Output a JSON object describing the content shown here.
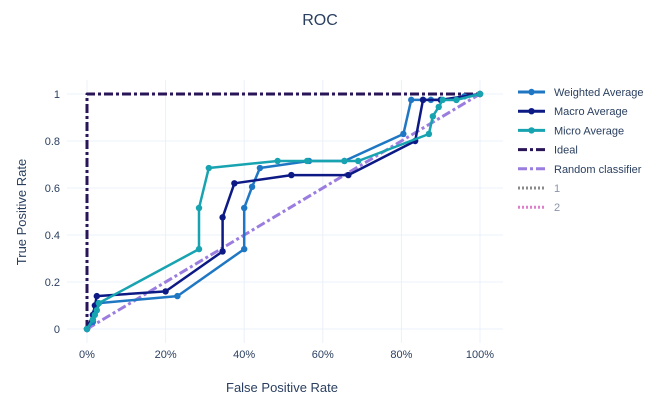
{
  "chart_data": {
    "type": "line",
    "title": "ROC",
    "xlabel": "False Positive Rate",
    "ylabel": "True Positive Rate",
    "xlim": [
      0,
      1
    ],
    "ylim": [
      0,
      1
    ],
    "x_tick_labels": [
      "0%",
      "20%",
      "40%",
      "60%",
      "80%",
      "100%"
    ],
    "x_tick_values": [
      0,
      0.2,
      0.4,
      0.6,
      0.8,
      1.0
    ],
    "y_tick_labels": [
      "0",
      "0.2",
      "0.4",
      "0.6",
      "0.8",
      "1"
    ],
    "y_tick_values": [
      0,
      0.2,
      0.4,
      0.6,
      0.8,
      1.0
    ],
    "grid": true,
    "legend_position": "right",
    "series": [
      {
        "name": "Weighted Average",
        "color": "#1f77c4",
        "style": "solid",
        "markers": true,
        "x": [
          0,
          0.015,
          0.02,
          0.025,
          0.03,
          0.23,
          0.4,
          0.4,
          0.42,
          0.44,
          0.565,
          0.655,
          0.805,
          0.825,
          0.855,
          0.875,
          0.94,
          0.96,
          1.0
        ],
        "y": [
          0,
          0.03,
          0.07,
          0.1,
          0.11,
          0.14,
          0.34,
          0.515,
          0.605,
          0.685,
          0.715,
          0.715,
          0.83,
          0.975,
          0.975,
          0.975,
          0.975,
          0.99,
          1.0
        ]
      },
      {
        "name": "Macro Average",
        "color": "#0d1a85",
        "style": "solid",
        "markers": true,
        "x": [
          0,
          0.015,
          0.02,
          0.025,
          0.2,
          0.345,
          0.345,
          0.375,
          0.52,
          0.665,
          0.835,
          0.855,
          0.9,
          1.0
        ],
        "y": [
          0,
          0.06,
          0.1,
          0.14,
          0.16,
          0.33,
          0.475,
          0.62,
          0.655,
          0.655,
          0.8,
          0.975,
          0.975,
          1.0
        ]
      },
      {
        "name": "Micro Average",
        "color": "#17a3b0",
        "style": "solid",
        "markers": true,
        "x": [
          0,
          0.015,
          0.02,
          0.025,
          0.03,
          0.285,
          0.285,
          0.31,
          0.485,
          0.56,
          0.655,
          0.69,
          0.87,
          0.88,
          0.895,
          0.905,
          0.94,
          1.0
        ],
        "y": [
          0,
          0.04,
          0.06,
          0.08,
          0.11,
          0.34,
          0.515,
          0.685,
          0.715,
          0.715,
          0.715,
          0.715,
          0.83,
          0.905,
          0.945,
          0.975,
          0.975,
          1.0
        ]
      },
      {
        "name": "Ideal",
        "color": "#2a1458",
        "style": "dashdot",
        "markers": false,
        "x": [
          0,
          0,
          1
        ],
        "y": [
          0,
          1,
          1
        ]
      },
      {
        "name": "Random classifier",
        "color": "#9b7de0",
        "style": "dashdot",
        "markers": false,
        "x": [
          0,
          1
        ],
        "y": [
          0,
          1
        ]
      },
      {
        "name": "1",
        "color": "#8a8a8a",
        "style": "dotted",
        "markers": false,
        "legend_only": true,
        "x": [],
        "y": []
      },
      {
        "name": "2",
        "color": "#e07fc9",
        "style": "dotted",
        "markers": false,
        "legend_only": true,
        "x": [],
        "y": []
      }
    ]
  }
}
